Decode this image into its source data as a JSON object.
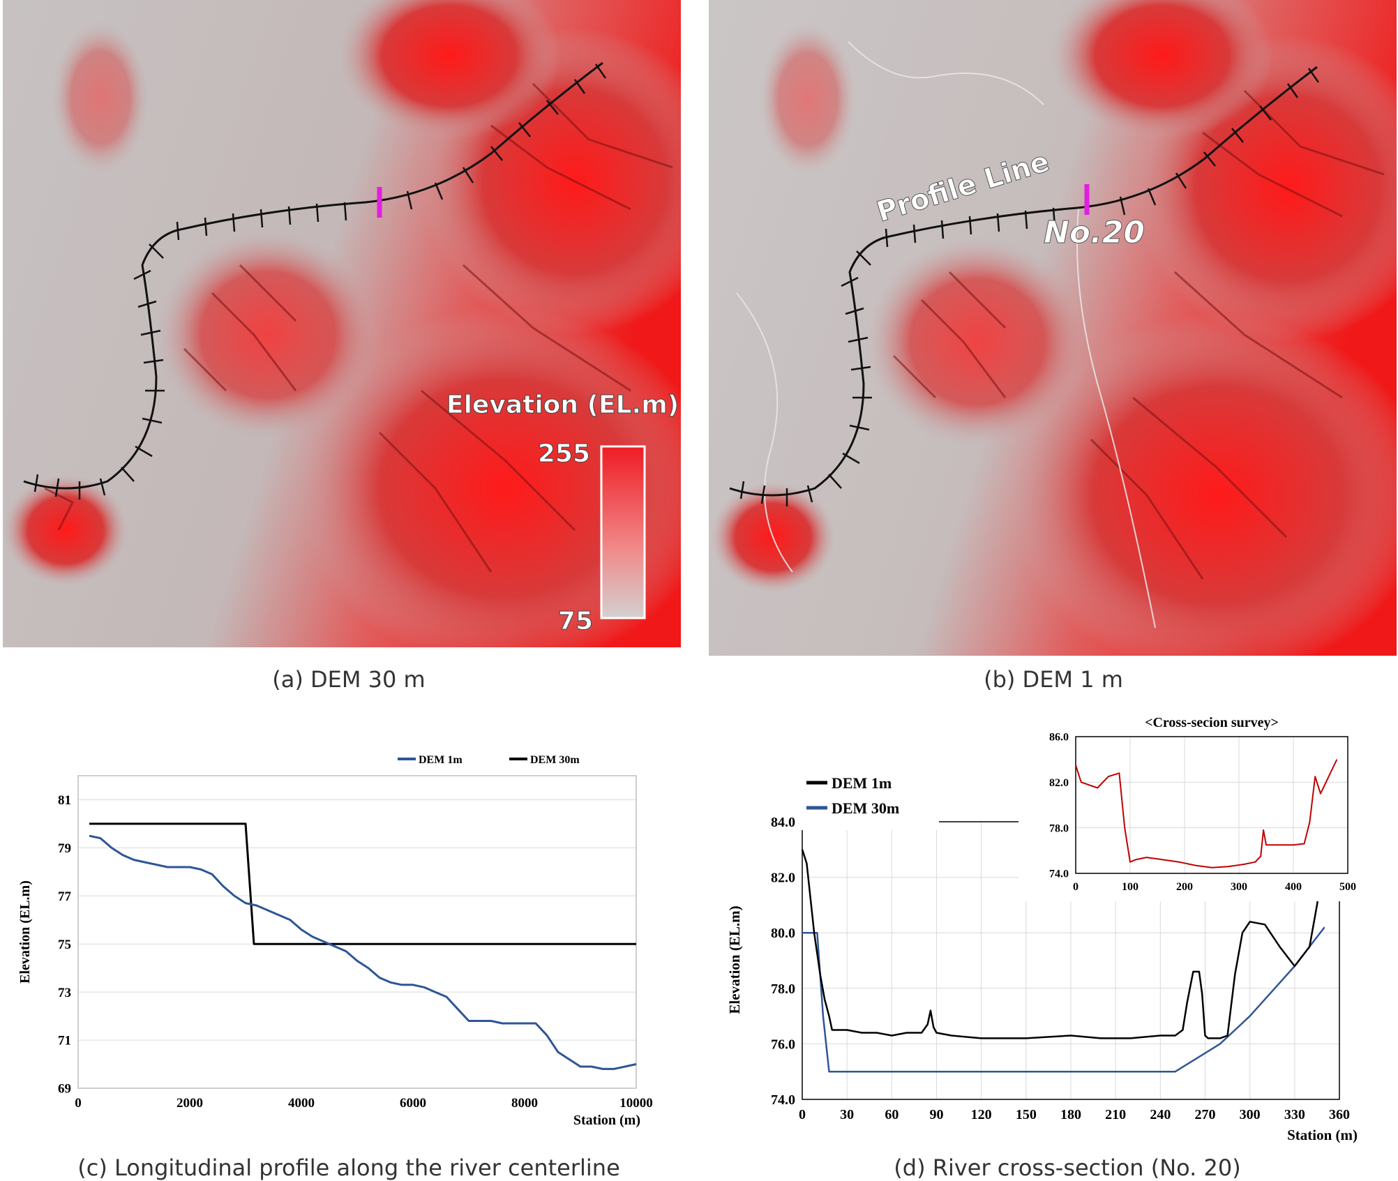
{
  "figure": {
    "panel_a": {
      "caption": "(a) DEM 30 m",
      "legend_title": "Elevation (EL.m)",
      "legend_max": "255",
      "legend_min": "75"
    },
    "panel_b": {
      "caption": "(b) DEM 1 m",
      "profile_label": "Profile Line",
      "section_label": "No.20"
    },
    "panel_c": {
      "caption": "(c) Longitudinal profile along the river centerline"
    },
    "panel_d": {
      "caption": "(d) River cross-section (No. 20)"
    }
  },
  "chart_data": [
    {
      "type": "line",
      "id": "longitudinal",
      "title": "",
      "xlabel": "Station (m)",
      "ylabel": "Elevation (EL.m)",
      "xlim": [
        0,
        10000
      ],
      "ylim": [
        69,
        82
      ],
      "xticks": [
        0,
        2000,
        4000,
        6000,
        8000,
        10000
      ],
      "yticks": [
        69,
        71,
        73,
        75,
        77,
        79,
        81
      ],
      "legend_position": "top-right",
      "colors": {
        "dem1": "#2e5597",
        "dem30": "#000000"
      },
      "series": [
        {
          "name": "DEM 1m",
          "x": [
            200,
            400,
            600,
            800,
            1000,
            1200,
            1400,
            1600,
            1800,
            2000,
            2200,
            2400,
            2600,
            2800,
            3000,
            3200,
            3400,
            3600,
            3800,
            4000,
            4200,
            4400,
            4600,
            4800,
            5000,
            5200,
            5400,
            5600,
            5800,
            6000,
            6200,
            6400,
            6600,
            6800,
            7000,
            7200,
            7400,
            7600,
            7800,
            8000,
            8200,
            8400,
            8600,
            8800,
            9000,
            9200,
            9400,
            9600,
            9800,
            10000
          ],
          "values": [
            79.5,
            79.4,
            79.0,
            78.7,
            78.5,
            78.4,
            78.3,
            78.2,
            78.2,
            78.2,
            78.1,
            77.9,
            77.4,
            77.0,
            76.7,
            76.6,
            76.4,
            76.2,
            76.0,
            75.6,
            75.3,
            75.1,
            74.9,
            74.7,
            74.3,
            74.0,
            73.6,
            73.4,
            73.3,
            73.3,
            73.2,
            73.0,
            72.8,
            72.3,
            71.8,
            71.8,
            71.8,
            71.7,
            71.7,
            71.7,
            71.7,
            71.2,
            70.5,
            70.2,
            69.9,
            69.9,
            69.8,
            69.8,
            69.9,
            70.0
          ]
        },
        {
          "name": "DEM 30m",
          "x": [
            200,
            3000,
            3150,
            10000
          ],
          "values": [
            80.0,
            80.0,
            75.0,
            75.0
          ]
        }
      ]
    },
    {
      "type": "line",
      "id": "cross_section",
      "title": "",
      "xlabel": "Station (m)",
      "ylabel": "Elevation (EL.m)",
      "xlim": [
        0,
        360
      ],
      "ylim": [
        74.0,
        84.0
      ],
      "xticks": [
        0,
        30,
        60,
        90,
        120,
        150,
        180,
        210,
        240,
        270,
        300,
        330,
        360
      ],
      "yticks": [
        "74.0",
        "76.0",
        "78.0",
        "80.0",
        "82.0",
        "84.0"
      ],
      "legend_position": "top-left",
      "colors": {
        "dem1": "#000000",
        "dem30": "#2e5597"
      },
      "series": [
        {
          "name": "DEM 1m",
          "x": [
            0,
            3,
            8,
            12,
            15,
            18,
            20,
            30,
            40,
            50,
            60,
            70,
            80,
            84,
            86,
            88,
            90,
            100,
            120,
            150,
            180,
            200,
            220,
            240,
            250,
            255,
            258,
            262,
            266,
            268,
            270,
            272,
            280,
            285,
            290,
            295,
            300,
            310,
            320,
            330,
            340,
            345,
            350
          ],
          "values": [
            83.0,
            82.5,
            80.0,
            78.5,
            77.6,
            77.0,
            76.5,
            76.5,
            76.4,
            76.4,
            76.3,
            76.4,
            76.4,
            76.7,
            77.2,
            76.6,
            76.4,
            76.3,
            76.2,
            76.2,
            76.3,
            76.2,
            76.2,
            76.3,
            76.3,
            76.5,
            77.5,
            78.6,
            78.6,
            77.8,
            76.3,
            76.2,
            76.2,
            76.3,
            78.5,
            80.0,
            80.4,
            80.3,
            79.5,
            78.8,
            79.5,
            81.0,
            82.8
          ]
        },
        {
          "name": "DEM 30m",
          "x": [
            0,
            10,
            14,
            18,
            250,
            280,
            300,
            330,
            350
          ],
          "values": [
            80.0,
            80.0,
            77.0,
            75.0,
            75.0,
            76.0,
            77.0,
            78.8,
            80.2
          ]
        }
      ]
    },
    {
      "type": "line",
      "id": "inset_survey",
      "title": "<Cross-secion survey>",
      "xlim": [
        0,
        500
      ],
      "ylim": [
        74.0,
        86.0
      ],
      "xticks": [
        0,
        100,
        200,
        300,
        400,
        500
      ],
      "yticks": [
        "74.0",
        "78.0",
        "82.0",
        "86.0"
      ],
      "colors": {
        "line": "#c00000"
      },
      "series": [
        {
          "name": "survey",
          "x": [
            0,
            10,
            40,
            60,
            80,
            90,
            100,
            110,
            130,
            160,
            190,
            220,
            250,
            280,
            310,
            330,
            340,
            345,
            350,
            370,
            400,
            420,
            430,
            440,
            450,
            460,
            470,
            480
          ],
          "values": [
            83.5,
            82.0,
            81.5,
            82.5,
            82.8,
            78.0,
            75.0,
            75.2,
            75.4,
            75.2,
            75.0,
            74.7,
            74.5,
            74.6,
            74.8,
            75.0,
            75.5,
            77.8,
            76.5,
            76.5,
            76.5,
            76.6,
            78.5,
            82.5,
            81.0,
            82.0,
            83.0,
            84.0
          ]
        }
      ]
    }
  ]
}
